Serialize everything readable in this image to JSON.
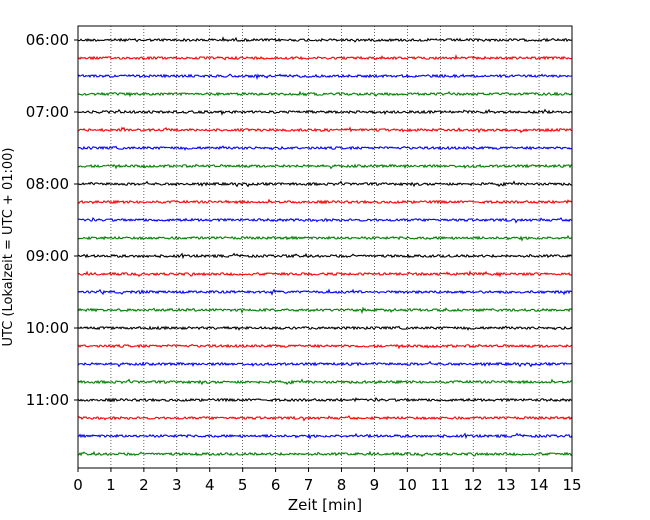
{
  "chart_data": {
    "type": "line",
    "title": "",
    "xlabel": "Zeit  [min]",
    "ylabel": "UTC (Lokalzeit = UTC + 01:00)",
    "xlim": [
      0,
      15
    ],
    "x_ticks": [
      "0",
      "1",
      "2",
      "3",
      "4",
      "5",
      "6",
      "7",
      "8",
      "9",
      "10",
      "11",
      "12",
      "13",
      "14",
      "15"
    ],
    "y_ticks": [
      "06:00",
      "07:00",
      "08:00",
      "09:00",
      "10:00",
      "11:00"
    ],
    "grid": "vertical dotted",
    "trace_interval_minutes": 15,
    "start_time": "06:00",
    "trace_colors": [
      "#000000",
      "#ff0000",
      "#0000ff",
      "#008000"
    ],
    "series": [
      {
        "start": "06:00",
        "color": "#000000"
      },
      {
        "start": "06:15",
        "color": "#ff0000"
      },
      {
        "start": "06:30",
        "color": "#0000ff"
      },
      {
        "start": "06:45",
        "color": "#008000"
      },
      {
        "start": "07:00",
        "color": "#000000"
      },
      {
        "start": "07:15",
        "color": "#ff0000"
      },
      {
        "start": "07:30",
        "color": "#0000ff"
      },
      {
        "start": "07:45",
        "color": "#008000"
      },
      {
        "start": "08:00",
        "color": "#000000"
      },
      {
        "start": "08:15",
        "color": "#ff0000"
      },
      {
        "start": "08:30",
        "color": "#0000ff"
      },
      {
        "start": "08:45",
        "color": "#008000"
      },
      {
        "start": "09:00",
        "color": "#000000"
      },
      {
        "start": "09:15",
        "color": "#ff0000"
      },
      {
        "start": "09:30",
        "color": "#0000ff"
      },
      {
        "start": "09:45",
        "color": "#008000"
      },
      {
        "start": "10:00",
        "color": "#000000"
      },
      {
        "start": "10:15",
        "color": "#ff0000"
      },
      {
        "start": "10:30",
        "color": "#0000ff"
      },
      {
        "start": "10:45",
        "color": "#008000"
      },
      {
        "start": "11:00",
        "color": "#000000"
      },
      {
        "start": "11:15",
        "color": "#ff0000"
      },
      {
        "start": "11:30",
        "color": "#0000ff"
      },
      {
        "start": "11:45",
        "color": "#008000"
      }
    ]
  }
}
